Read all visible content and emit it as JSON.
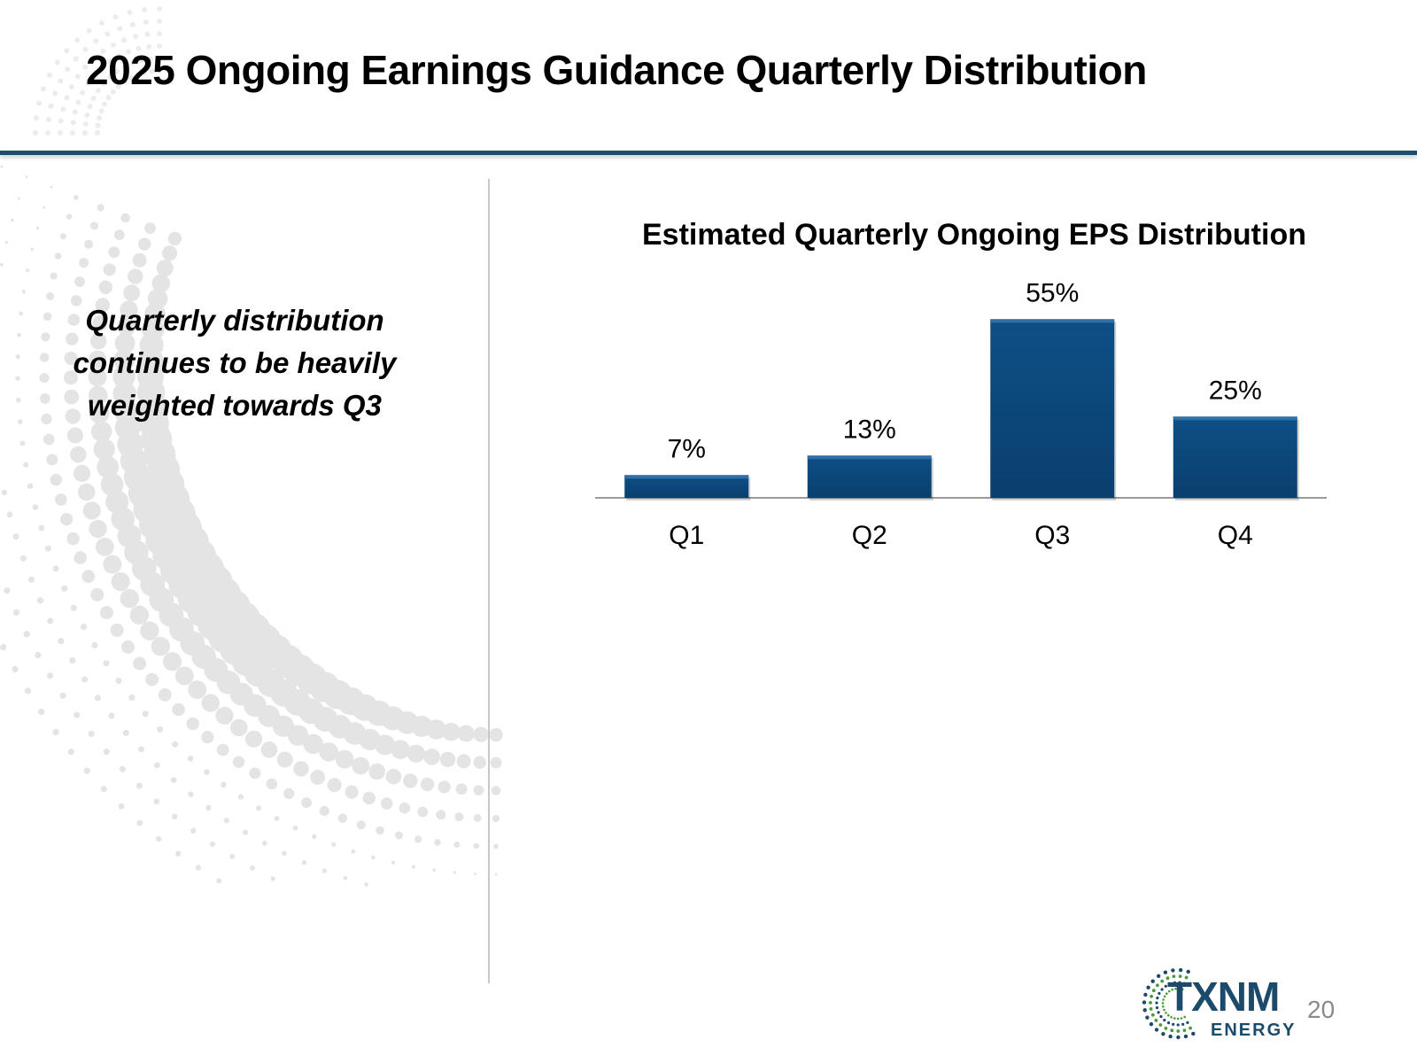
{
  "slide": {
    "title": "2025 Ongoing Earnings Guidance Quarterly Distribution",
    "note": "Quarterly distribution continues to be heavily weighted towards Q3",
    "page_number": "20"
  },
  "logo": {
    "name": "TXNM",
    "subtitle": "ENERGY",
    "colors": {
      "tx": "#1b4a6b",
      "nm": "#4a9a3c"
    }
  },
  "colors": {
    "bar": "#0e4f86",
    "bar_top": "#2d6fa8",
    "title_rule": "#1c4e6e",
    "divider": "#c8c8c8"
  },
  "chart_data": {
    "type": "bar",
    "title": "Estimated Quarterly Ongoing EPS Distribution",
    "categories": [
      "Q1",
      "Q2",
      "Q3",
      "Q4"
    ],
    "values": [
      7,
      13,
      55,
      25
    ],
    "data_labels": [
      "7%",
      "13%",
      "55%",
      "25%"
    ],
    "unit": "%",
    "xlabel": "",
    "ylabel": "",
    "ylim": [
      0,
      60
    ],
    "grid": false,
    "legend": "none"
  }
}
